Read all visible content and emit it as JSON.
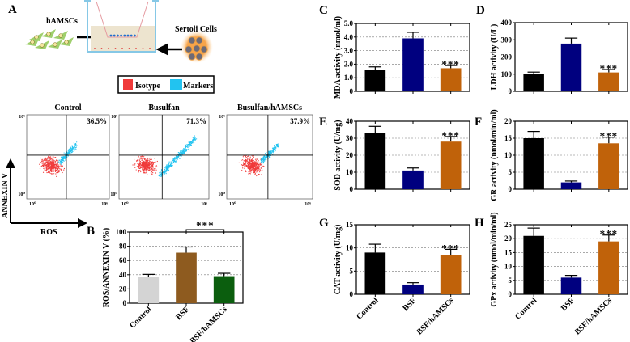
{
  "panel_labels": {
    "A": "A",
    "B": "B",
    "C": "C",
    "D": "D",
    "E": "E",
    "F": "F",
    "G": "G",
    "H": "H"
  },
  "schematic": {
    "left_label": "hAMSCs",
    "right_label": "Sertoli Cells"
  },
  "legend": {
    "isotype": "Isotype",
    "markers": "Markers",
    "isotype_color": "#f03a3a",
    "markers_color": "#22c3f0"
  },
  "flow": {
    "y_axis_label": "ANNEXIN V",
    "x_axis_label": "ROS",
    "tick_min": "10⁰",
    "tick_max": "10⁶",
    "plots": [
      {
        "title": "Control",
        "percent": "36.5%"
      },
      {
        "title": "Busulfan",
        "percent": "71.3%"
      },
      {
        "title": "Busulfan/hAMSCs",
        "percent": "37.9%"
      }
    ]
  },
  "significance": "***",
  "chart_data": [
    {
      "id": "B",
      "type": "bar",
      "ylabel": "ROS/ANNEXIN V (%)",
      "ylim": [
        0,
        100
      ],
      "yticks": [
        "0",
        "20",
        "40",
        "60",
        "80",
        "100"
      ],
      "categories": [
        "Control",
        "BSF",
        "BSF/hAMSCs"
      ],
      "values": [
        36.5,
        71,
        38
      ],
      "errors": [
        4,
        8,
        4
      ],
      "colors": [
        "#d4d4d4",
        "#8e5b1f",
        "#0b5e0e"
      ],
      "significance": "***",
      "significance_pair": [
        "BSF",
        "BSF/hAMSCs"
      ]
    },
    {
      "id": "C",
      "type": "bar",
      "ylabel": "MDA activity (nmol/ml)",
      "ylim": [
        0,
        5
      ],
      "yticks": [
        "0",
        "1.0",
        "2.0",
        "3.0",
        "4.0",
        "5.0"
      ],
      "values": [
        1.6,
        3.9,
        1.7
      ],
      "errors": [
        0.2,
        0.45,
        0.2
      ],
      "colors": [
        "#000000",
        "#00007f",
        "#c0620a"
      ],
      "significance": "***"
    },
    {
      "id": "D",
      "type": "bar",
      "ylabel": "LDH activity (U/L)",
      "ylim": [
        0,
        400
      ],
      "yticks": [
        "0",
        "100",
        "200",
        "300",
        "400"
      ],
      "values": [
        100,
        278,
        110
      ],
      "errors": [
        12,
        32,
        17
      ],
      "colors": [
        "#000000",
        "#00007f",
        "#c0620a"
      ],
      "significance": "***"
    },
    {
      "id": "E",
      "type": "bar",
      "ylabel": "SOD activity (U/mg)",
      "ylim": [
        0,
        40
      ],
      "yticks": [
        "0",
        "10",
        "20",
        "30",
        "40"
      ],
      "values": [
        33,
        11,
        28
      ],
      "errors": [
        4,
        1.5,
        3
      ],
      "colors": [
        "#000000",
        "#00007f",
        "#c0620a"
      ],
      "significance": "***"
    },
    {
      "id": "F",
      "type": "bar",
      "ylabel": "GR activity (nmol/min/ml)",
      "ylim": [
        0,
        20
      ],
      "yticks": [
        "0",
        "5",
        "10",
        "15",
        "20"
      ],
      "values": [
        15,
        2,
        13.5
      ],
      "errors": [
        2,
        0.4,
        1.8
      ],
      "colors": [
        "#000000",
        "#00007f",
        "#c0620a"
      ],
      "significance": "***"
    },
    {
      "id": "G",
      "type": "bar",
      "ylabel": "CAT activity (U/mg)",
      "ylim": [
        0,
        15
      ],
      "yticks": [
        "0",
        "5",
        "10",
        "15"
      ],
      "categories": [
        "Control",
        "BSF",
        "BSF/hAMSCs"
      ],
      "values": [
        9,
        2.1,
        8.5
      ],
      "errors": [
        1.8,
        0.4,
        1.2
      ],
      "colors": [
        "#000000",
        "#00007f",
        "#c0620a"
      ],
      "significance": "***"
    },
    {
      "id": "H",
      "type": "bar",
      "ylabel": "GPx activity (nmol/min/ml)",
      "ylim": [
        0,
        25
      ],
      "yticks": [
        "0",
        "5",
        "10",
        "15",
        "20",
        "25"
      ],
      "categories": [
        "Control",
        "BSF",
        "BSF/hAMSCs"
      ],
      "values": [
        21,
        6,
        19
      ],
      "errors": [
        2.8,
        0.8,
        2.3
      ],
      "colors": [
        "#000000",
        "#00007f",
        "#c0620a"
      ],
      "significance": "***"
    }
  ]
}
